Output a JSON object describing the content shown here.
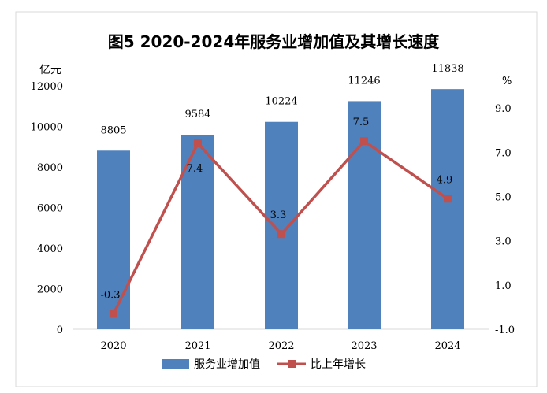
{
  "chart_data": {
    "type": "bar+line",
    "title": "图5  2020-2024年服务业增加值及其增长速度",
    "categories": [
      "2020",
      "2021",
      "2022",
      "2023",
      "2024"
    ],
    "left_axis": {
      "unit": "亿元",
      "range": [
        0,
        12000
      ],
      "ticks": [
        "0",
        "2000",
        "4000",
        "6000",
        "8000",
        "10000",
        "12000"
      ]
    },
    "right_axis": {
      "unit": "%",
      "range": [
        -1.0,
        10.0
      ],
      "ticks": [
        "-1.0",
        "1.0",
        "3.0",
        "5.0",
        "7.0",
        "9.0"
      ]
    },
    "series": [
      {
        "name": "服务业增加值",
        "type": "bar",
        "axis": "left",
        "color": "#4f81bd",
        "values": [
          8805,
          9584,
          10224,
          11246,
          11838
        ]
      },
      {
        "name": "比上年增长",
        "type": "line",
        "axis": "right",
        "color": "#c0504d",
        "values": [
          -0.3,
          7.4,
          3.3,
          7.5,
          4.9
        ]
      }
    ],
    "legend": "bottom",
    "grid": false
  }
}
